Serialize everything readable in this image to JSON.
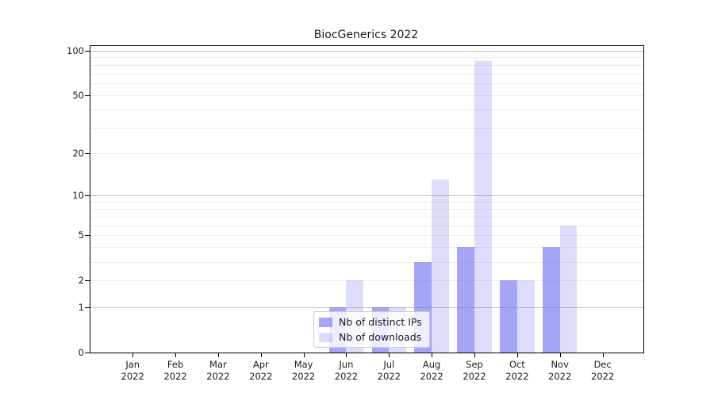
{
  "title": "BiocGenerics 2022",
  "colors": {
    "bar_base": "rgba(110,110,240,1)",
    "bar_distinct_ips": "rgba(110,110,240,0.62)",
    "bar_downloads": "rgba(110,110,240,0.24)",
    "grid_minor": "#ebebeb",
    "grid_major": "#c2c2c2",
    "spine": "#000000",
    "text": "#1a1a1a",
    "legend_border": "#cccccc"
  },
  "chart_data": {
    "type": "bar",
    "title": "BiocGenerics 2022",
    "categories": [
      "Jan 2022",
      "Feb 2022",
      "Mar 2022",
      "Apr 2022",
      "May 2022",
      "Jun 2022",
      "Jul 2022",
      "Aug 2022",
      "Sep 2022",
      "Oct 2022",
      "Nov 2022",
      "Dec 2022"
    ],
    "x_tick_line1": [
      "Jan",
      "Feb",
      "Mar",
      "Apr",
      "May",
      "Jun",
      "Jul",
      "Aug",
      "Sep",
      "Oct",
      "Nov",
      "Dec"
    ],
    "x_tick_line2": "2022",
    "series": [
      {
        "name": "Nb of distinct IPs",
        "values": [
          0,
          0,
          0,
          0,
          0,
          1,
          1,
          3,
          4,
          2,
          4,
          0
        ],
        "color": "rgba(110,110,240,0.62)"
      },
      {
        "name": "Nb of downloads",
        "values": [
          0,
          0,
          0,
          0,
          0,
          2,
          1,
          13,
          85,
          2,
          6,
          0
        ],
        "color": "rgba(110,110,240,0.24)"
      }
    ],
    "xlabel": "",
    "ylabel": "",
    "y_scale": "log10(1+y)",
    "y_ticks": [
      0,
      1,
      2,
      5,
      10,
      20,
      50,
      100
    ],
    "y_gridlines_major": [
      1,
      10,
      100
    ],
    "y_gridlines_minor": [
      2,
      3,
      4,
      5,
      6,
      7,
      8,
      9,
      20,
      30,
      40,
      50,
      60,
      70,
      80,
      90
    ],
    "ylim": [
      0,
      107
    ],
    "grid": true,
    "legend_position": "lower center"
  }
}
